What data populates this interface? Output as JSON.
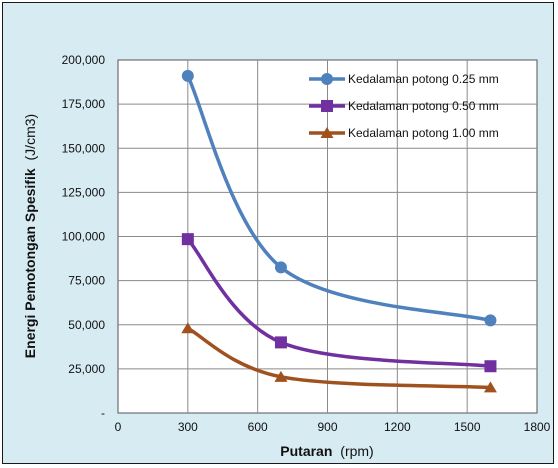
{
  "chart_data": {
    "type": "line",
    "title": "",
    "xlabel": {
      "main": "Putaran",
      "unit": "(rpm)"
    },
    "ylabel": {
      "main": "Energi Pemotongan Spesifik",
      "unit": "(J/cm3)"
    },
    "xlim": [
      0,
      1800
    ],
    "ylim": [
      0,
      200000
    ],
    "x_ticks": [
      0,
      300,
      600,
      900,
      1200,
      1500,
      1800
    ],
    "x_tick_labels": [
      "0",
      "300",
      "600",
      "900",
      "1200",
      "1500",
      "1800"
    ],
    "y_ticks": [
      0,
      25000,
      50000,
      75000,
      100000,
      125000,
      150000,
      175000,
      200000
    ],
    "y_tick_labels": [
      "-",
      "25,000",
      "50,000",
      "75,000",
      "100,000",
      "125,000",
      "150,000",
      "175,000",
      "200,000"
    ],
    "grid": true,
    "legend_position": "top-right",
    "x": [
      300,
      700,
      1600
    ],
    "series": [
      {
        "name": "Kedalaman potong 0.25 mm",
        "values": [
          191000,
          82500,
          52500
        ],
        "color": "#4f81bd",
        "marker": "circle"
      },
      {
        "name": "Kedalaman potong 0.50 mm",
        "values": [
          98500,
          40000,
          26500
        ],
        "color": "#7030a0",
        "marker": "square"
      },
      {
        "name": "Kedalaman potong 1.00 mm",
        "values": [
          48000,
          20500,
          14500
        ],
        "color": "#a0521e",
        "marker": "triangle"
      }
    ]
  }
}
